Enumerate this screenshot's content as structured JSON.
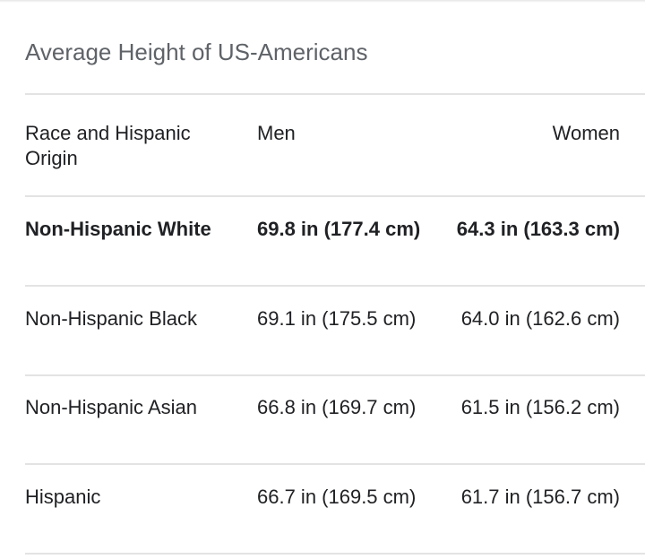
{
  "title": "Average Height of US-Americans",
  "table": {
    "headers": {
      "race": "Race and Hispanic Origin",
      "men": "Men",
      "women": "Women"
    },
    "rows": [
      {
        "race": "Non-Hispanic White",
        "men": "69.8 in (177.4 cm)",
        "women": "64.3 in (163.3 cm)",
        "bold": true
      },
      {
        "race": "Non-Hispanic Black",
        "men": "69.1 in (175.5 cm)",
        "women": "64.0 in (162.6 cm)",
        "bold": false
      },
      {
        "race": "Non-Hispanic Asian",
        "men": "66.8 in (169.7 cm)",
        "women": "61.5 in (156.2 cm)",
        "bold": false
      },
      {
        "race": "Hispanic",
        "men": "66.7 in (169.5 cm)",
        "women": "61.7 in (156.7 cm)",
        "bold": false
      }
    ]
  }
}
